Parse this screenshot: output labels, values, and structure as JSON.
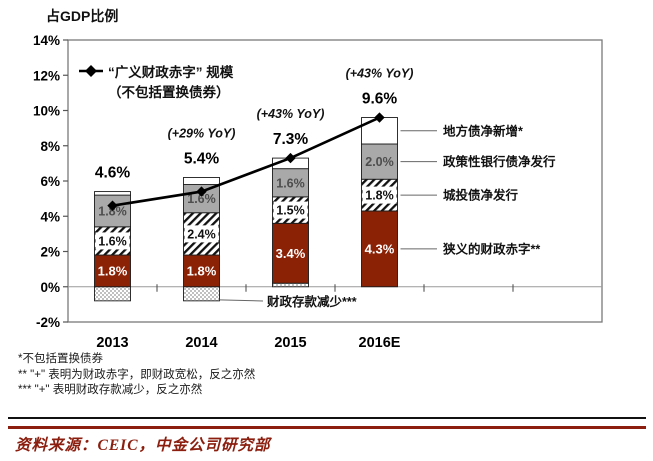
{
  "header": {
    "title": "占GDP比例"
  },
  "chart_data": {
    "type": "bar",
    "stacked": true,
    "line_overlay": true,
    "categories": [
      "2013",
      "2014",
      "2015",
      "2016E"
    ],
    "ylim": [
      -2,
      14
    ],
    "ytick_step": 2,
    "ytick_suffix": "%",
    "grid": "zero-line-only",
    "series": [
      {
        "name": "财政存款减少***",
        "style": "dotted",
        "values": [
          -0.8,
          -0.8,
          0.2,
          0
        ],
        "labels": [
          "",
          "",
          "",
          ""
        ]
      },
      {
        "name": "狭义的财政赤字**",
        "style": "red",
        "values": [
          1.8,
          1.8,
          3.4,
          4.3
        ],
        "labels": [
          "1.8%",
          "1.8%",
          "3.4%",
          "4.3%"
        ]
      },
      {
        "name": "城投债净发行",
        "style": "hatched",
        "values": [
          1.6,
          2.4,
          1.5,
          1.8
        ],
        "labels": [
          "1.6%",
          "2.4%",
          "1.5%",
          "1.8%"
        ]
      },
      {
        "name": "政策性银行债净发行",
        "style": "gray",
        "values": [
          1.8,
          1.6,
          1.6,
          2.0
        ],
        "labels": [
          "1.8%",
          "1.6%",
          "1.6%",
          "2.0%"
        ]
      },
      {
        "name": "地方债净新增*",
        "style": "white",
        "values": [
          0.2,
          0.4,
          0.6,
          1.5
        ],
        "labels": [
          "",
          "",
          "",
          ""
        ]
      }
    ],
    "line_series": {
      "name": "“广义财政赤字” 规模（不包括置换债券）",
      "values": [
        4.6,
        5.4,
        7.3,
        9.6
      ],
      "point_labels": [
        "4.6%",
        "5.4%",
        "7.3%",
        "9.6%"
      ],
      "yoy_labels": [
        "",
        "(+29% YoY)",
        "(+43% YoY)",
        "(+43% YoY)"
      ]
    },
    "legend": {
      "line1": "“广义财政赤字” 规模",
      "line2": "（不包括置换债券）",
      "legend_position": "top-left-inside"
    },
    "right_annotations": [
      {
        "label": "地方债净新增*",
        "series_index": 4
      },
      {
        "label": "政策性银行债净发行",
        "series_index": 3
      },
      {
        "label": "城投债净发行",
        "series_index": 2
      },
      {
        "label": "狭义的财政赤字**",
        "series_index": 1
      }
    ],
    "callout": {
      "label": "财政存款减少***",
      "target_category_index": 1,
      "target_series_index": 0
    }
  },
  "footnotes": [
    "*不包括置换债券",
    "** \"+\" 表明为财政赤字，即财政宽松，反之亦然",
    "*** \"+\" 表明财政存款减少，反之亦然"
  ],
  "source": {
    "text": "资料来源：CEIC，中金公司研究部"
  },
  "colors": {
    "bar_red": "#8B2206",
    "bar_gray": "#A9A9A9",
    "hatch_ink": "#111111",
    "dot_ink": "#8c8c8c",
    "frame": "#7a7a7a",
    "zero_line": "#9a9a9a",
    "leader_line": "#666666",
    "brand_maroon": "#8B1E0E",
    "line_series": "#000000"
  }
}
